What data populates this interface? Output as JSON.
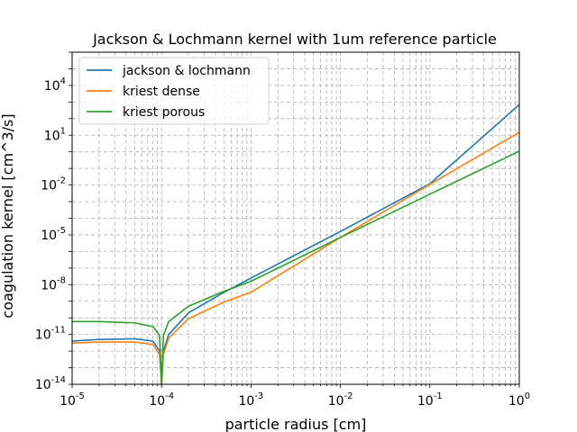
{
  "chart_data": {
    "type": "line",
    "title": "Jackson & Lochmann kernel with 1um reference particle",
    "xlabel": "particle radius [cm]",
    "ylabel": "coagulation kernel [cm^3/s]",
    "xscale": "log",
    "yscale": "log",
    "xlim": [
      1e-05,
      1
    ],
    "ylim": [
      1e-14,
      1000000.0
    ],
    "xticks": [
      {
        "exp": "-5"
      },
      {
        "exp": "-4"
      },
      {
        "exp": "-3"
      },
      {
        "exp": "-2"
      },
      {
        "exp": "-1"
      },
      {
        "exp": "0"
      }
    ],
    "yticks": [
      {
        "exp": "-14"
      },
      {
        "exp": "-11"
      },
      {
        "exp": "-8"
      },
      {
        "exp": "-5"
      },
      {
        "exp": "-2"
      },
      {
        "exp": "1"
      },
      {
        "exp": "4"
      }
    ],
    "grid": "major and minor, dashed gray",
    "legend_position": "upper-left",
    "series": [
      {
        "name": "jackson & lochmann",
        "color": "#1f77b4",
        "x": [
          1e-05,
          2e-05,
          5e-05,
          8e-05,
          9.5e-05,
          0.0001,
          0.000105,
          0.00012,
          0.0002,
          0.0005,
          0.001,
          0.01,
          0.1,
          1
        ],
        "y": [
          4e-12,
          5e-12,
          5.5e-12,
          4e-12,
          1e-12,
          1e-14,
          1e-12,
          1e-11,
          2e-10,
          3.5e-09,
          2.5e-08,
          1.6e-05,
          0.012,
          700.0
        ]
      },
      {
        "name": "kriest dense",
        "color": "#ff7f0e",
        "x": [
          1e-05,
          2e-05,
          5e-05,
          8e-05,
          9.5e-05,
          0.0001,
          0.000105,
          0.00012,
          0.0002,
          0.0005,
          0.001,
          0.01,
          0.1,
          1
        ],
        "y": [
          3e-12,
          3.5e-12,
          3.5e-12,
          2.5e-12,
          6e-13,
          1e-14,
          6e-13,
          6e-12,
          9e-11,
          9e-10,
          3.5e-09,
          7e-06,
          0.011,
          15.0
        ]
      },
      {
        "name": "kriest porous",
        "color": "#2ca02c",
        "x": [
          1e-05,
          2e-05,
          5e-05,
          8e-05,
          9.5e-05,
          0.0001,
          0.000105,
          0.00012,
          0.0002,
          0.0005,
          0.001,
          0.01,
          0.1,
          1
        ],
        "y": [
          6e-11,
          6e-11,
          5e-11,
          3e-11,
          9e-12,
          1e-14,
          9e-12,
          6e-11,
          5e-10,
          4e-09,
          1.6e-08,
          7e-06,
          0.0028,
          1.1
        ]
      }
    ]
  }
}
